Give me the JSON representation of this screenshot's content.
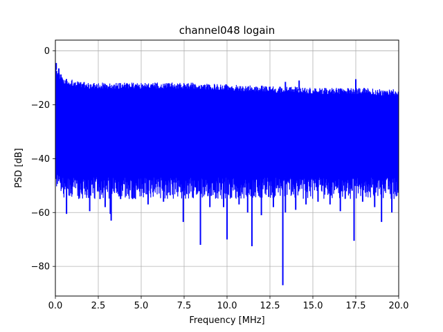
{
  "chart_data": {
    "type": "line",
    "title": "channel048 logain",
    "xlabel": "Frequency [MHz]",
    "ylabel": "PSD [dB]",
    "xlim": [
      0,
      20
    ],
    "ylim": [
      -91,
      4
    ],
    "x_ticks": [
      0,
      2.5,
      5,
      7.5,
      10,
      12.5,
      15,
      17.5,
      20
    ],
    "x_tick_labels": [
      "0.0",
      "2.5",
      "5.0",
      "7.5",
      "10.0",
      "12.5",
      "15.0",
      "17.5",
      "20.0"
    ],
    "y_ticks": [
      0,
      -20,
      -40,
      -60,
      -80
    ],
    "y_tick_labels": [
      "0",
      "−20",
      "−40",
      "−60",
      "−80"
    ],
    "grid": true,
    "legend": "none",
    "series_color": "#0000ff",
    "envelope": {
      "description_points": "upper and lower envelope of dense noise-like PSD trace",
      "x": [
        0.0,
        0.05,
        0.2,
        0.5,
        1.0,
        2.0,
        3.0,
        4.0,
        5.0,
        6.0,
        7.0,
        8.0,
        9.0,
        10.0,
        11.0,
        12.0,
        13.0,
        14.0,
        15.0,
        16.0,
        17.0,
        18.0,
        19.0,
        20.0
      ],
      "upper": [
        -5,
        -7,
        -9,
        -11,
        -12,
        -13,
        -13,
        -13,
        -13,
        -13,
        -13,
        -13,
        -13.5,
        -13.5,
        -14,
        -14,
        -14.5,
        -14.5,
        -15,
        -15,
        -15,
        -15,
        -15.5,
        -15.5
      ],
      "lower": [
        -42,
        -44,
        -46,
        -47,
        -47,
        -47,
        -47,
        -47,
        -47,
        -47,
        -47,
        -47,
        -47,
        -47,
        -47,
        -47,
        -47,
        -47,
        -47,
        -47,
        -47,
        -47,
        -47,
        -47
      ]
    },
    "dips": [
      {
        "x": 0.3,
        "y": -49
      },
      {
        "x": 0.65,
        "y": -60.5
      },
      {
        "x": 1.0,
        "y": -50
      },
      {
        "x": 1.4,
        "y": -54
      },
      {
        "x": 2.0,
        "y": -59.5
      },
      {
        "x": 2.6,
        "y": -55
      },
      {
        "x": 2.9,
        "y": -58
      },
      {
        "x": 3.2,
        "y": -60.5
      },
      {
        "x": 3.25,
        "y": -63
      },
      {
        "x": 3.8,
        "y": -55
      },
      {
        "x": 4.5,
        "y": -55
      },
      {
        "x": 5.4,
        "y": -57
      },
      {
        "x": 6.3,
        "y": -56
      },
      {
        "x": 7.45,
        "y": -63.5
      },
      {
        "x": 8.0,
        "y": -54
      },
      {
        "x": 8.45,
        "y": -72
      },
      {
        "x": 9.0,
        "y": -58
      },
      {
        "x": 9.8,
        "y": -58
      },
      {
        "x": 10.0,
        "y": -70
      },
      {
        "x": 10.7,
        "y": -57
      },
      {
        "x": 11.2,
        "y": -60
      },
      {
        "x": 11.45,
        "y": -72.5
      },
      {
        "x": 12.0,
        "y": -61
      },
      {
        "x": 12.7,
        "y": -58
      },
      {
        "x": 13.25,
        "y": -87
      },
      {
        "x": 13.4,
        "y": -60
      },
      {
        "x": 14.0,
        "y": -59
      },
      {
        "x": 14.6,
        "y": -57
      },
      {
        "x": 15.3,
        "y": -56
      },
      {
        "x": 16.0,
        "y": -57
      },
      {
        "x": 16.6,
        "y": -59.5
      },
      {
        "x": 17.4,
        "y": -70.5
      },
      {
        "x": 17.9,
        "y": -56
      },
      {
        "x": 18.6,
        "y": -58
      },
      {
        "x": 19.0,
        "y": -63.5
      },
      {
        "x": 19.6,
        "y": -60
      }
    ],
    "spikes": [
      {
        "x": 0.05,
        "y": -4.5
      },
      {
        "x": 0.2,
        "y": -6.5
      },
      {
        "x": 17.5,
        "y": -10.5
      },
      {
        "x": 13.4,
        "y": -11.5
      },
      {
        "x": 14.2,
        "y": -11
      }
    ]
  }
}
